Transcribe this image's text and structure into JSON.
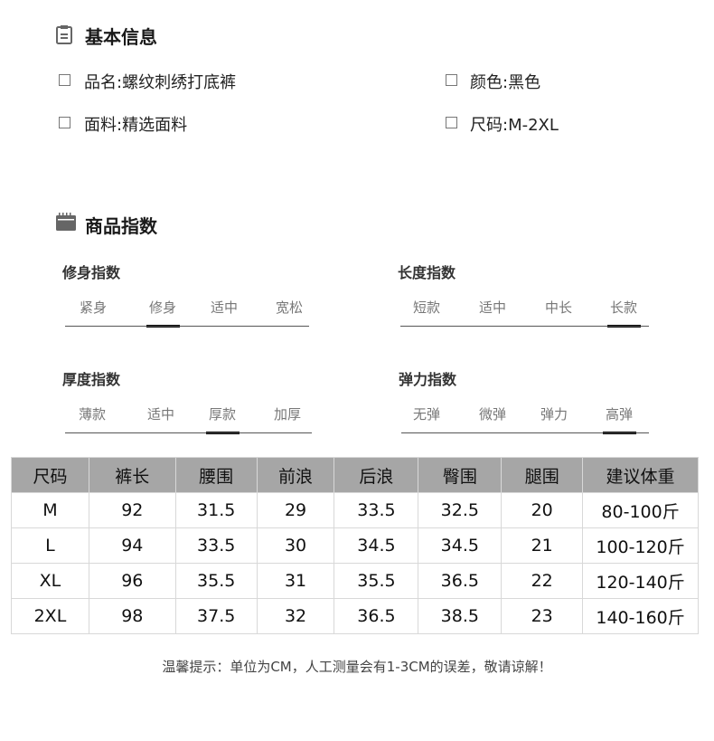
{
  "basic_info": {
    "title": "基本信息",
    "icon": "clipboard-icon",
    "items": [
      "品名:螺纹刺绣打底裤",
      "颜色:黑色",
      "面料:精选面料",
      "尺码:M-2XL"
    ]
  },
  "product_index": {
    "title": "商品指数",
    "icon": "calendar-icon",
    "scales": [
      {
        "title": "修身指数",
        "options": [
          "紧身",
          "修身",
          "适中",
          "宽松"
        ],
        "selected": "修身"
      },
      {
        "title": "长度指数",
        "options": [
          "短款",
          "适中",
          "中长",
          "长款"
        ],
        "selected": "长款"
      },
      {
        "title": "厚度指数",
        "options": [
          "薄款",
          "适中",
          "厚款",
          "加厚"
        ],
        "selected": "厚款"
      },
      {
        "title": "弹力指数",
        "options": [
          "无弹",
          "微弹",
          "弹力",
          "高弹"
        ],
        "selected": "高弹"
      }
    ]
  },
  "size_table": {
    "header_color": "#a6a6a6",
    "headers": [
      "尺码",
      "裤长",
      "腰围",
      "前浪",
      "后浪",
      "臀围",
      "腿围",
      "建议体重"
    ],
    "rows": [
      [
        "M",
        "92",
        "31.5",
        "29",
        "33.5",
        "32.5",
        "20",
        "80-100斤"
      ],
      [
        "L",
        "94",
        "33.5",
        "30",
        "34.5",
        "34.5",
        "21",
        "100-120斤"
      ],
      [
        "XL",
        "96",
        "35.5",
        "31",
        "35.5",
        "36.5",
        "22",
        "120-140斤"
      ],
      [
        "2XL",
        "98",
        "37.5",
        "32",
        "36.5",
        "38.5",
        "23",
        "140-160斤"
      ]
    ]
  },
  "note": "温馨提示：单位为CM，人工测量会有1-3CM的误差，敬请谅解！"
}
